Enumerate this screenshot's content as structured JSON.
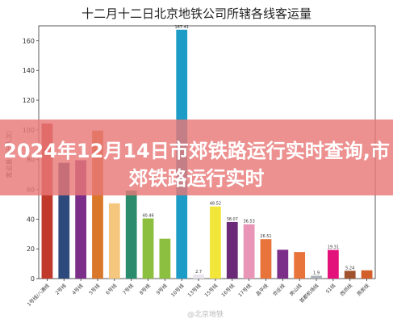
{
  "chart_data": {
    "type": "bar",
    "title": "十二月十二日北京地铁公司所辖各线客运量",
    "ylabel": "客运量（万人次）",
    "xlabel": "",
    "ylim": [
      0,
      170
    ],
    "yticks": [
      0,
      20,
      40,
      60,
      80,
      100,
      120,
      140,
      160
    ],
    "grid": false,
    "categories": [
      "1号线/八通线",
      "2号线",
      "4号线",
      "5号线",
      "6号线",
      "7号线",
      "8号线",
      "9号线",
      "10号线",
      "13号线",
      "15号线",
      "16号线",
      "17号线",
      "昌平线",
      "亦庄线",
      "房山线",
      "首都机场线",
      "S1线",
      "西郊线",
      "燕房线"
    ],
    "series": [
      {
        "values": [
          104.32,
          77.84,
          79.6,
          99.5,
          50.63,
          59.2,
          40.46,
          26.8,
          167.41,
          2.7,
          48.52,
          38.07,
          36.53,
          26.51,
          19.4,
          17.86,
          1.9,
          19.31,
          5.24,
          5.56
        ],
        "value_labels": [
          "",
          "",
          "",
          "",
          "",
          "",
          "40.46",
          "",
          "167.41",
          "2.7",
          "48.52",
          "38.07",
          "36.53",
          "26.51",
          "",
          "",
          "1.9",
          "19.31",
          "5.24",
          ""
        ]
      }
    ],
    "colors": [
      "#c0392b",
      "#2e4a7d",
      "#7b2f88",
      "#d9772a",
      "#f5c77e",
      "#2b8c6d",
      "#8cbf3f",
      "#8cbf3f",
      "#1c9cc6",
      "#e9e4ee",
      "#f3e63a",
      "#6a2a78",
      "#e895b8",
      "#e8743b",
      "#7b2f88",
      "#e8743b",
      "#a9b0b6",
      "#e2127a",
      "#a0522d",
      "#d25f2a"
    ]
  },
  "overlay": {
    "headline": "2024年12月14日市郊铁路运行实时查询,市郊铁路运行实时"
  },
  "watermark": "@北京地铁"
}
